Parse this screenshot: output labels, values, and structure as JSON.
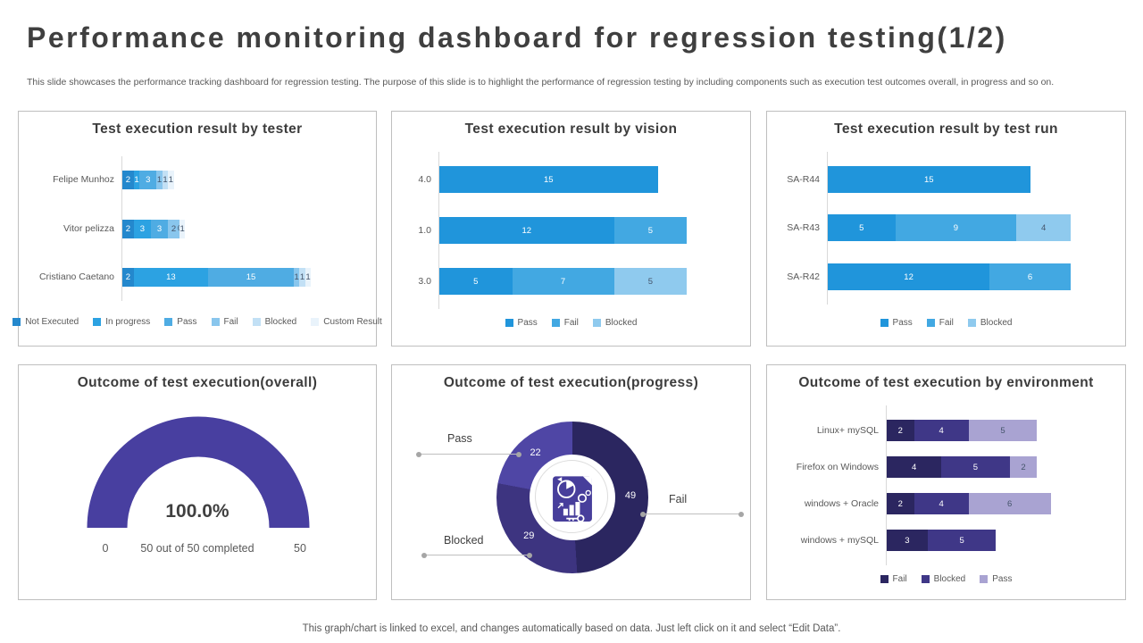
{
  "slide": {
    "title": "Performance monitoring dashboard for regression testing(1/2)",
    "subtitle": "This slide showcases the performance tracking dashboard for regression testing. The purpose of this slide is to highlight the performance of regression testing by  including components such as execution test outcomes overall, in progress and so on.",
    "footer": "This graph/chart is linked to excel, and changes automatically based on data. Just left click on it and select “Edit Data”."
  },
  "chart_data": [
    {
      "id": "by_tester",
      "type": "bar",
      "orientation": "horizontal",
      "stacked": true,
      "title": "Test execution result by tester",
      "categories": [
        "Felipe Munhoz",
        "Vitor pelizza",
        "Cristiano Caetano"
      ],
      "series": [
        {
          "name": "Not Executed",
          "color": "#2488CD",
          "values": [
            2,
            2,
            2
          ]
        },
        {
          "name": "In progress",
          "color": "#2CA2E2",
          "values": [
            1,
            3,
            13
          ]
        },
        {
          "name": "Pass",
          "color": "#4FACE3",
          "values": [
            3,
            3,
            15
          ]
        },
        {
          "name": "Fail",
          "color": "#89C6ED",
          "values": [
            1,
            2,
            1
          ]
        },
        {
          "name": "Blocked",
          "color": "#C2E0F5",
          "values": [
            1,
            0,
            1
          ]
        },
        {
          "name": "Custom Result",
          "color": "#E9F3FB",
          "values": [
            1,
            1,
            1
          ]
        }
      ],
      "xlim": [
        0,
        35
      ],
      "legend_position": "bottom"
    },
    {
      "id": "by_vision",
      "type": "bar",
      "orientation": "horizontal",
      "stacked": true,
      "title": "Test execution result by vision",
      "categories": [
        "4.0",
        "1.0",
        "3.0"
      ],
      "series": [
        {
          "name": "Pass",
          "color": "#2095DB",
          "values": [
            15,
            12,
            5
          ]
        },
        {
          "name": "Fail",
          "color": "#42A8E2",
          "values": [
            null,
            5,
            7
          ]
        },
        {
          "name": "Blocked",
          "color": "#8FCAEE",
          "values": [
            null,
            null,
            5
          ]
        }
      ],
      "xlim": [
        0,
        18
      ],
      "legend_position": "bottom"
    },
    {
      "id": "by_test_run",
      "type": "bar",
      "orientation": "horizontal",
      "stacked": true,
      "title": "Test execution result by test run",
      "categories": [
        "SA-R44",
        "SA-R43",
        "SA-R42"
      ],
      "series": [
        {
          "name": "Pass",
          "color": "#2095DB",
          "values": [
            15,
            5,
            12
          ]
        },
        {
          "name": "Fail",
          "color": "#42A8E2",
          "values": [
            null,
            9,
            6
          ]
        },
        {
          "name": "Blocked",
          "color": "#8FCAEE",
          "values": [
            null,
            4,
            null
          ]
        }
      ],
      "xlim": [
        0,
        19
      ],
      "legend_position": "bottom"
    },
    {
      "id": "overall_gauge",
      "type": "gauge",
      "title": "Outcome of test execution(overall)",
      "value_percent": "100.0%",
      "completed_text": "50 out of 50 completed",
      "min_label": "0",
      "max_label": "50",
      "min": 0,
      "max": 50,
      "value": 50,
      "color": "#483FA0"
    },
    {
      "id": "progress_donut",
      "type": "pie",
      "title": "Outcome of test execution(progress)",
      "labels": [
        "Fail",
        "Blocked",
        "Pass"
      ],
      "values": [
        49,
        29,
        22
      ],
      "colors": [
        "#2B2660",
        "#3D3480",
        "#4F46A5"
      ],
      "start_angle_deg": 0,
      "direction": "clockwise",
      "center_icon": "analytics-report-icon"
    },
    {
      "id": "by_environment",
      "type": "bar",
      "orientation": "horizontal",
      "stacked": true,
      "title": "Outcome of test execution by environment",
      "categories": [
        "Linux+ mySQL",
        "Firefox on Windows",
        "windows + Oracle",
        "windows + mySQL"
      ],
      "series": [
        {
          "name": "Fail",
          "color": "#2B2660",
          "values": [
            2,
            4,
            2,
            3
          ]
        },
        {
          "name": "Blocked",
          "color": "#3F3787",
          "values": [
            4,
            5,
            4,
            5
          ]
        },
        {
          "name": "Pass",
          "color": "#A9A3D2",
          "values": [
            5,
            2,
            6,
            null
          ]
        }
      ],
      "xlim": [
        0,
        13
      ],
      "legend_position": "bottom"
    }
  ]
}
